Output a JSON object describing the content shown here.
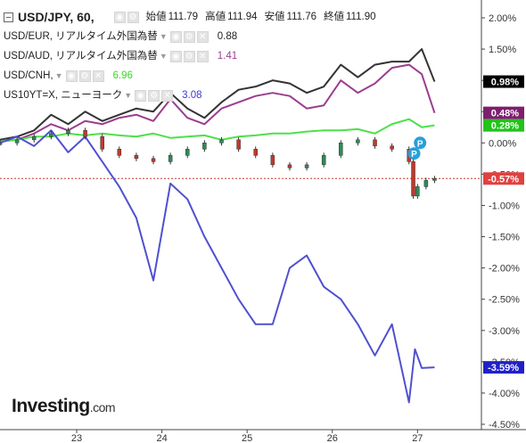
{
  "legend": {
    "main": {
      "symbol": "USD/JPY, 60,",
      "open_label": "始値",
      "open": "111.79",
      "high_label": "高値",
      "high": "111.94",
      "low_label": "安値",
      "low": "111.76",
      "close_label": "終値",
      "close": "111.90"
    },
    "overlays": [
      {
        "name": "USD/EUR, リアルタイム外国為替",
        "value": "0.88",
        "color": "#222222"
      },
      {
        "name": "USD/AUD, リアルタイム外国為替",
        "value": "1.41",
        "color": "#9c3d8f"
      },
      {
        "name": "USD/CNH,",
        "value": "6.96",
        "color": "#3ad62a"
      },
      {
        "name": "US10YT=X, ニューヨーク",
        "value": "3.08",
        "color": "#3a3ad8"
      }
    ]
  },
  "logo": {
    "main": "Investing",
    "suffix": ".com"
  },
  "chart_data": {
    "type": "line",
    "x_ticks": [
      "23",
      "24",
      "25",
      "26",
      "27"
    ],
    "y_ticks": [
      "2.00%",
      "1.50%",
      "1.00%",
      "0.50%",
      "0.00%",
      "-0.50%",
      "-1.00%",
      "-1.50%",
      "-2.00%",
      "-2.50%",
      "-3.00%",
      "-3.50%",
      "-4.00%",
      "-4.50%"
    ],
    "ylim": [
      -4.5,
      2.1
    ],
    "xlim": [
      22.1,
      27.75
    ],
    "grid": false,
    "last_value_labels": [
      {
        "text": "0.98%",
        "value": 0.98,
        "color": "#000000"
      },
      {
        "text": "0.48%",
        "value": 0.48,
        "color": "#7e1f6e"
      },
      {
        "text": "0.28%",
        "value": 0.28,
        "color": "#22c31a"
      },
      {
        "text": "-0.57%",
        "value": -0.57,
        "color": "#e0413e"
      },
      {
        "text": "-3.59%",
        "value": -3.59,
        "color": "#2020c8"
      }
    ],
    "reference_line": {
      "value": -0.57,
      "color": "#c0392b",
      "style": "dotted"
    },
    "event_markers": [
      {
        "label": "P",
        "x": 26.96,
        "y": -0.17
      },
      {
        "label": "P",
        "x": 27.03,
        "y": 0.0
      }
    ],
    "series": [
      {
        "name": "USD/EUR",
        "color": "#333333",
        "x": [
          22.1,
          22.3,
          22.5,
          22.7,
          22.9,
          23.1,
          23.3,
          23.5,
          23.7,
          23.9,
          24.1,
          24.3,
          24.5,
          24.7,
          24.9,
          25.1,
          25.3,
          25.5,
          25.7,
          25.9,
          26.1,
          26.3,
          26.5,
          26.7,
          26.9,
          27.05,
          27.2
        ],
        "y": [
          0.05,
          0.1,
          0.2,
          0.45,
          0.3,
          0.5,
          0.35,
          0.45,
          0.55,
          0.5,
          0.8,
          0.55,
          0.4,
          0.65,
          0.85,
          0.9,
          1.0,
          0.95,
          0.8,
          0.9,
          1.25,
          1.05,
          1.25,
          1.3,
          1.3,
          1.5,
          0.98
        ]
      },
      {
        "name": "USD/AUD",
        "color": "#9c3d8f",
        "x": [
          22.1,
          22.3,
          22.5,
          22.7,
          22.9,
          23.1,
          23.3,
          23.5,
          23.7,
          23.9,
          24.1,
          24.3,
          24.5,
          24.7,
          24.9,
          25.1,
          25.3,
          25.5,
          25.7,
          25.9,
          26.1,
          26.3,
          26.5,
          26.7,
          26.9,
          27.05,
          27.2
        ],
        "y": [
          0.02,
          0.05,
          0.15,
          0.3,
          0.2,
          0.35,
          0.3,
          0.4,
          0.45,
          0.35,
          0.7,
          0.4,
          0.3,
          0.55,
          0.65,
          0.75,
          0.8,
          0.75,
          0.55,
          0.6,
          1.0,
          0.8,
          0.95,
          1.2,
          1.25,
          1.1,
          0.48
        ]
      },
      {
        "name": "USD/CNH",
        "color": "#4ee04a",
        "x": [
          22.1,
          22.3,
          22.5,
          22.7,
          22.9,
          23.1,
          23.3,
          23.5,
          23.7,
          23.9,
          24.1,
          24.3,
          24.5,
          24.7,
          24.9,
          25.1,
          25.3,
          25.5,
          25.7,
          25.9,
          26.1,
          26.3,
          26.5,
          26.7,
          26.9,
          27.05,
          27.2
        ],
        "y": [
          0.02,
          0.05,
          0.1,
          0.1,
          0.15,
          0.12,
          0.15,
          0.12,
          0.1,
          0.15,
          0.08,
          0.1,
          0.12,
          0.05,
          0.1,
          0.12,
          0.15,
          0.15,
          0.18,
          0.2,
          0.2,
          0.22,
          0.15,
          0.3,
          0.38,
          0.25,
          0.28
        ]
      },
      {
        "name": "US10YT=X",
        "color": "#5050d0",
        "x": [
          22.1,
          22.3,
          22.5,
          22.7,
          22.9,
          23.1,
          23.3,
          23.5,
          23.7,
          23.9,
          24.1,
          24.3,
          24.5,
          24.7,
          24.9,
          25.1,
          25.3,
          25.5,
          25.7,
          25.9,
          26.1,
          26.3,
          26.5,
          26.7,
          26.9,
          26.97,
          27.05,
          27.2
        ],
        "y": [
          0.0,
          0.1,
          -0.05,
          0.2,
          -0.15,
          0.1,
          -0.3,
          -0.7,
          -1.2,
          -2.2,
          -0.65,
          -0.9,
          -1.5,
          -2.0,
          -2.5,
          -2.9,
          -2.9,
          -2.0,
          -1.8,
          -2.3,
          -2.5,
          -2.9,
          -3.4,
          -2.9,
          -4.15,
          -3.3,
          -3.6,
          -3.59
        ]
      },
      {
        "name": "USD/JPY",
        "color": "#e0413e",
        "type": "candlestick",
        "x": [
          22.1,
          22.3,
          22.5,
          22.7,
          22.9,
          23.1,
          23.3,
          23.5,
          23.7,
          23.9,
          24.1,
          24.3,
          24.5,
          24.7,
          24.9,
          25.1,
          25.3,
          25.5,
          25.7,
          25.9,
          26.1,
          26.3,
          26.5,
          26.7,
          26.9,
          26.95,
          27.0,
          27.1,
          27.2
        ],
        "y": [
          0.0,
          0.05,
          0.1,
          0.15,
          0.2,
          0.1,
          -0.1,
          -0.2,
          -0.25,
          -0.3,
          -0.2,
          -0.1,
          0.0,
          0.05,
          -0.1,
          -0.2,
          -0.35,
          -0.4,
          -0.35,
          -0.2,
          0.0,
          0.05,
          -0.05,
          -0.1,
          -0.3,
          -0.85,
          -0.7,
          -0.6,
          -0.57
        ]
      }
    ]
  }
}
